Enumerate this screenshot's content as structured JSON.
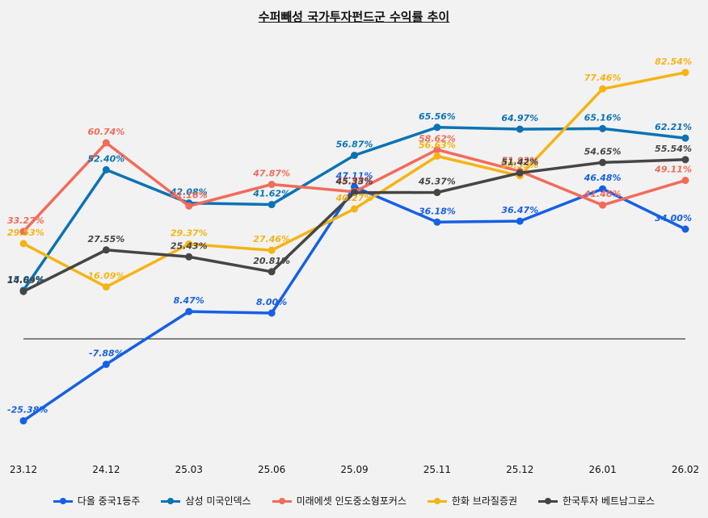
{
  "chart_data": {
    "type": "line",
    "title": "수퍼빼성 국가투자펀드군 수익률 추이",
    "categories": [
      "23.12",
      "24.12",
      "25.03",
      "25.06",
      "25.09",
      "25.11",
      "25.12",
      "26.01",
      "26.02"
    ],
    "ylim": [
      -35,
      90
    ],
    "baseline": 0,
    "grid": false,
    "legend_position": "bottom",
    "series": [
      {
        "name": "다올 중국1등주",
        "color": "#1560e6",
        "values": [
          -25.38,
          -7.88,
          8.47,
          8.0,
          47.11,
          36.18,
          36.47,
          46.48,
          34.0
        ],
        "labels": [
          "-25.38%",
          "-7.88%",
          "8.47%",
          "8.00%",
          "47.11%",
          "36.18%",
          "36.47%",
          "46.48%",
          "34.00%"
        ]
      },
      {
        "name": "삼성 미국인덱스",
        "color": "#0b73b5",
        "values": [
          15.04,
          52.4,
          42.08,
          41.62,
          56.87,
          65.56,
          64.97,
          65.16,
          62.21
        ],
        "labels": [
          "15.04%",
          "52.40%",
          "42.08%",
          "41.62%",
          "56.87%",
          "65.56%",
          "64.97%",
          "65.16%",
          "62.21%"
        ]
      },
      {
        "name": "미래에셋 인도중소형포커스",
        "color": "#f26b5b",
        "values": [
          33.27,
          60.74,
          41.16,
          47.87,
          45.58,
          58.62,
          51.93,
          41.46,
          49.11
        ],
        "labels": [
          "33.27%",
          "60.74%",
          "41.16%",
          "47.87%",
          "45.58%",
          "58.62%",
          "51.93%",
          "41.46%",
          "49.11%"
        ]
      },
      {
        "name": "한화 브라질증권",
        "color": "#f5b414",
        "values": [
          29.53,
          16.09,
          29.37,
          27.46,
          40.27,
          56.63,
          50.53,
          77.46,
          82.54
        ],
        "labels": [
          "29.53%",
          "16.09%",
          "29.37%",
          "27.46%",
          "40.27%",
          "56.63%",
          "50.53%",
          "77.46%",
          "82.54%"
        ]
      },
      {
        "name": "한국투자 베트남그로스",
        "color": "#454545",
        "values": [
          14.69,
          27.55,
          25.43,
          20.81,
          45.33,
          45.37,
          51.42,
          54.65,
          55.54
        ],
        "labels": [
          "14.69%",
          "27.55%",
          "25.43%",
          "20.81%",
          "45.33%",
          "45.37%",
          "51.42%",
          "54.65%",
          "55.54%"
        ]
      }
    ]
  }
}
